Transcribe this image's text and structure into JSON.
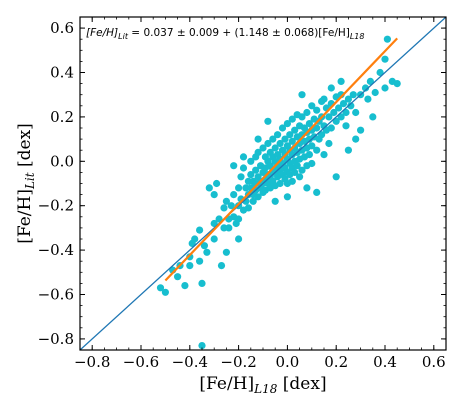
{
  "chart_data": {
    "type": "scatter",
    "xlabel": "[Fe/H]L18 [dex]",
    "xlabel_main": "[Fe/H]",
    "xlabel_sub": "L18",
    "xlabel_unit": " [dex]",
    "ylabel": "[Fe/H]Lit [dex]",
    "ylabel_main": "[Fe/H]",
    "ylabel_sub": "Lit",
    "ylabel_unit": " [dex]",
    "xlim": [
      -0.85,
      0.65
    ],
    "ylim": [
      -0.85,
      0.65
    ],
    "xticks": [
      -0.8,
      -0.6,
      -0.4,
      -0.2,
      0.0,
      0.2,
      0.4,
      0.6
    ],
    "xtick_labels": [
      "−0.8",
      "−0.6",
      "−0.4",
      "−0.2",
      "0.0",
      "0.2",
      "0.4",
      "0.6"
    ],
    "yticks": [
      -0.8,
      -0.6,
      -0.4,
      -0.2,
      0.0,
      0.2,
      0.4,
      0.6
    ],
    "ytick_labels": [
      "−0.8",
      "−0.6",
      "−0.4",
      "−0.2",
      "0.0",
      "0.2",
      "0.4",
      "0.6"
    ],
    "minor_tick_step": 0.05,
    "annotation": {
      "lhs_main": "[Fe/H]",
      "lhs_sub": "Lit",
      "middle": " = 0.037 ± 0.009 + (1.148 ± 0.068)[Fe/H]",
      "rhs_sub": "L18"
    },
    "identity_line": {
      "from": [
        -0.85,
        -0.85
      ],
      "to": [
        0.65,
        0.65
      ],
      "color": "#1f77b4"
    },
    "fit_line": {
      "intercept": 0.037,
      "slope": 1.148,
      "x_range": [
        -0.5,
        0.45
      ],
      "color": "#ff7f0e"
    },
    "marker_color": "#17becf",
    "points": [
      [
        -0.52,
        -0.57
      ],
      [
        -0.5,
        -0.59
      ],
      [
        -0.47,
        -0.49
      ],
      [
        -0.45,
        -0.52
      ],
      [
        -0.44,
        -0.47
      ],
      [
        -0.42,
        -0.56
      ],
      [
        -0.4,
        -0.43
      ],
      [
        -0.39,
        -0.37
      ],
      [
        -0.38,
        -0.35
      ],
      [
        -0.36,
        -0.31
      ],
      [
        -0.35,
        -0.83
      ],
      [
        -0.35,
        -0.55
      ],
      [
        -0.34,
        -0.38
      ],
      [
        -0.33,
        -0.41
      ],
      [
        -0.32,
        -0.12
      ],
      [
        -0.3,
        -0.28
      ],
      [
        -0.3,
        -0.35
      ],
      [
        -0.29,
        -0.1
      ],
      [
        -0.28,
        -0.26
      ],
      [
        -0.27,
        -0.47
      ],
      [
        -0.26,
        -0.3
      ],
      [
        -0.26,
        -0.21
      ],
      [
        -0.25,
        -0.18
      ],
      [
        -0.24,
        -0.26
      ],
      [
        -0.24,
        -0.3
      ],
      [
        -0.23,
        -0.2
      ],
      [
        -0.22,
        -0.15
      ],
      [
        -0.22,
        -0.25
      ],
      [
        -0.21,
        -0.28
      ],
      [
        -0.2,
        -0.12
      ],
      [
        -0.2,
        -0.2
      ],
      [
        -0.2,
        -0.26
      ],
      [
        -0.19,
        -0.07
      ],
      [
        -0.19,
        -0.17
      ],
      [
        -0.18,
        -0.22
      ],
      [
        -0.18,
        -0.03
      ],
      [
        -0.17,
        -0.12
      ],
      [
        -0.17,
        -0.18
      ],
      [
        -0.16,
        -0.09
      ],
      [
        -0.16,
        -0.15
      ],
      [
        -0.16,
        -0.21
      ],
      [
        -0.15,
        0.0
      ],
      [
        -0.15,
        -0.06
      ],
      [
        -0.15,
        -0.12
      ],
      [
        -0.14,
        -0.15
      ],
      [
        -0.14,
        -0.09
      ],
      [
        -0.14,
        -0.18
      ],
      [
        -0.13,
        0.02
      ],
      [
        -0.13,
        -0.04
      ],
      [
        -0.13,
        -0.1
      ],
      [
        -0.13,
        -0.13
      ],
      [
        -0.12,
        -0.07
      ],
      [
        -0.12,
        -0.16
      ],
      [
        -0.12,
        0.04
      ],
      [
        -0.11,
        -0.02
      ],
      [
        -0.11,
        -0.09
      ],
      [
        -0.11,
        -0.12
      ],
      [
        -0.1,
        0.06
      ],
      [
        -0.1,
        -0.05
      ],
      [
        -0.1,
        -0.1
      ],
      [
        -0.1,
        -0.14
      ],
      [
        -0.09,
        0.02
      ],
      [
        -0.09,
        -0.03
      ],
      [
        -0.09,
        -0.08
      ],
      [
        -0.09,
        -0.13
      ],
      [
        -0.08,
        0.08
      ],
      [
        -0.08,
        0.0
      ],
      [
        -0.08,
        -0.06
      ],
      [
        -0.08,
        -0.1
      ],
      [
        -0.07,
        0.04
      ],
      [
        -0.07,
        -0.02
      ],
      [
        -0.07,
        -0.07
      ],
      [
        -0.07,
        -0.12
      ],
      [
        -0.06,
        0.1
      ],
      [
        -0.06,
        0.02
      ],
      [
        -0.06,
        -0.04
      ],
      [
        -0.06,
        -0.09
      ],
      [
        -0.05,
        0.06
      ],
      [
        -0.05,
        0.0
      ],
      [
        -0.05,
        -0.05
      ],
      [
        -0.05,
        -0.11
      ],
      [
        -0.04,
        0.12
      ],
      [
        -0.04,
        0.03
      ],
      [
        -0.04,
        -0.02
      ],
      [
        -0.04,
        -0.07
      ],
      [
        -0.03,
        0.08
      ],
      [
        -0.03,
        0.01
      ],
      [
        -0.03,
        -0.04
      ],
      [
        -0.03,
        -0.1
      ],
      [
        -0.02,
        0.15
      ],
      [
        -0.02,
        0.05
      ],
      [
        -0.02,
        -0.01
      ],
      [
        -0.02,
        -0.06
      ],
      [
        -0.01,
        0.1
      ],
      [
        -0.01,
        0.03
      ],
      [
        -0.01,
        -0.03
      ],
      [
        -0.01,
        -0.08
      ],
      [
        0.0,
        0.17
      ],
      [
        0.0,
        0.07
      ],
      [
        0.0,
        0.01
      ],
      [
        0.0,
        -0.05
      ],
      [
        0.0,
        -0.1
      ],
      [
        0.01,
        0.12
      ],
      [
        0.01,
        0.05
      ],
      [
        0.01,
        -0.01
      ],
      [
        0.01,
        -0.06
      ],
      [
        0.02,
        0.19
      ],
      [
        0.02,
        0.09
      ],
      [
        0.02,
        0.03
      ],
      [
        0.02,
        -0.03
      ],
      [
        0.02,
        -0.09
      ],
      [
        0.03,
        0.14
      ],
      [
        0.03,
        0.06
      ],
      [
        0.03,
        0.0
      ],
      [
        0.03,
        -0.05
      ],
      [
        0.04,
        0.21
      ],
      [
        0.04,
        0.11
      ],
      [
        0.04,
        0.04
      ],
      [
        0.04,
        -0.02
      ],
      [
        0.05,
        0.16
      ],
      [
        0.05,
        0.08
      ],
      [
        0.05,
        0.01
      ],
      [
        0.05,
        -0.07
      ],
      [
        0.06,
        0.2
      ],
      [
        0.06,
        0.12
      ],
      [
        0.06,
        0.05
      ],
      [
        0.06,
        -0.04
      ],
      [
        0.07,
        0.15
      ],
      [
        0.07,
        0.09
      ],
      [
        0.07,
        0.02
      ],
      [
        0.08,
        0.22
      ],
      [
        0.08,
        0.13
      ],
      [
        0.08,
        0.06
      ],
      [
        0.08,
        -0.02
      ],
      [
        0.09,
        0.17
      ],
      [
        0.09,
        0.1
      ],
      [
        0.09,
        0.03
      ],
      [
        0.1,
        0.25
      ],
      [
        0.1,
        0.14
      ],
      [
        0.1,
        0.07
      ],
      [
        0.1,
        -0.01
      ],
      [
        0.11,
        0.19
      ],
      [
        0.11,
        0.11
      ],
      [
        0.12,
        0.23
      ],
      [
        0.12,
        0.15
      ],
      [
        0.12,
        0.05
      ],
      [
        0.13,
        0.18
      ],
      [
        0.13,
        0.1
      ],
      [
        0.14,
        0.27
      ],
      [
        0.14,
        0.2
      ],
      [
        0.14,
        0.12
      ],
      [
        0.15,
        0.16
      ],
      [
        0.15,
        0.03
      ],
      [
        0.16,
        0.24
      ],
      [
        0.16,
        0.14
      ],
      [
        0.17,
        0.2
      ],
      [
        0.17,
        0.08
      ],
      [
        0.18,
        0.26
      ],
      [
        0.18,
        0.15
      ],
      [
        0.19,
        0.22
      ],
      [
        0.2,
        0.29
      ],
      [
        0.2,
        0.18
      ],
      [
        0.21,
        0.24
      ],
      [
        0.22,
        0.2
      ],
      [
        0.22,
        0.3
      ],
      [
        0.23,
        0.26
      ],
      [
        0.24,
        0.22
      ],
      [
        0.25,
        0.28
      ],
      [
        0.26,
        0.25
      ],
      [
        0.27,
        0.3
      ],
      [
        0.28,
        0.22
      ],
      [
        0.3,
        0.3
      ],
      [
        0.32,
        0.33
      ],
      [
        0.34,
        0.36
      ],
      [
        0.36,
        0.31
      ],
      [
        0.38,
        0.4
      ],
      [
        0.4,
        0.33
      ],
      [
        0.4,
        0.46
      ],
      [
        0.41,
        0.55
      ],
      [
        0.43,
        0.36
      ],
      [
        0.45,
        0.35
      ],
      [
        0.12,
        -0.14
      ],
      [
        0.2,
        -0.07
      ],
      [
        0.25,
        0.05
      ],
      [
        0.18,
        0.33
      ],
      [
        0.06,
        0.3
      ],
      [
        -0.08,
        0.18
      ],
      [
        0.15,
        0.28
      ],
      [
        -0.25,
        -0.41
      ],
      [
        -0.3,
        -0.15
      ],
      [
        0.28,
        0.1
      ],
      [
        0.3,
        0.14
      ],
      [
        0.24,
        0.16
      ],
      [
        -0.2,
        -0.35
      ],
      [
        -0.36,
        -0.45
      ],
      [
        -0.4,
        -0.47
      ],
      [
        -0.05,
        -0.18
      ],
      [
        0.0,
        -0.16
      ],
      [
        0.08,
        -0.12
      ],
      [
        0.22,
        0.36
      ],
      [
        0.33,
        0.28
      ],
      [
        0.35,
        0.2
      ],
      [
        -0.18,
        0.02
      ],
      [
        -0.12,
        0.1
      ],
      [
        -0.22,
        -0.02
      ]
    ]
  }
}
